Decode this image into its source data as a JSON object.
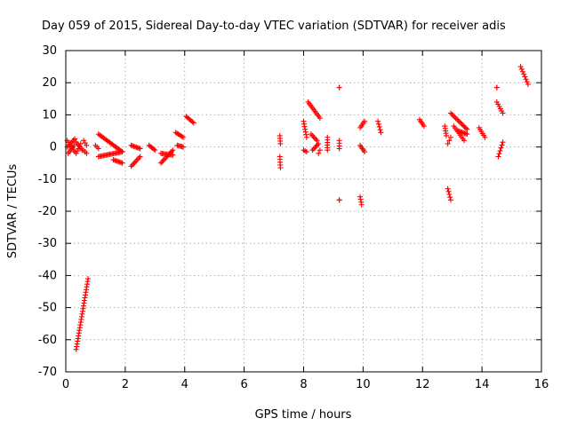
{
  "chart_data": {
    "type": "scatter",
    "title": "Day 059 of 2015, Sidereal Day-to-day VTEC variation (SDTVAR) for receiver adis",
    "xlabel": "GPS time / hours",
    "ylabel": "SDTVAR / TECUs",
    "xlim": [
      0,
      16
    ],
    "ylim": [
      -70,
      30
    ],
    "xticks": [
      0,
      2,
      4,
      6,
      8,
      10,
      12,
      14,
      16
    ],
    "yticks": [
      -70,
      -60,
      -50,
      -40,
      -30,
      -20,
      -10,
      0,
      10,
      20,
      30
    ],
    "grid": true,
    "marker": "plus",
    "color": "#ff0000",
    "series": [
      {
        "name": "sdtvar",
        "segments": [
          [
            0.05,
            2.0,
            0.3,
            -1.5
          ],
          [
            0.05,
            0.0,
            0.3,
            2.5
          ],
          [
            0.08,
            -2.0,
            0.28,
            0.5
          ],
          [
            0.35,
            1.5,
            0.55,
            -1.0
          ],
          [
            0.35,
            -2.0,
            0.5,
            1.0
          ],
          [
            0.6,
            2.0,
            0.7,
            0.5
          ],
          [
            0.6,
            -1.0,
            0.7,
            -2.0
          ],
          [
            0.35,
            -63.0,
            0.75,
            -41.0
          ],
          [
            1.0,
            0.5,
            1.1,
            -0.5
          ],
          [
            1.1,
            4.0,
            1.9,
            -1.5
          ],
          [
            1.1,
            -3.0,
            1.9,
            -1.5
          ],
          [
            1.6,
            -4.0,
            1.9,
            -5.0
          ],
          [
            2.2,
            0.5,
            2.5,
            -0.5
          ],
          [
            2.2,
            -6.0,
            2.5,
            -3.0
          ],
          [
            2.8,
            0.5,
            3.0,
            -1.0
          ],
          [
            3.2,
            -5.0,
            3.6,
            -1.0
          ],
          [
            3.2,
            -2.0,
            3.6,
            -2.5
          ],
          [
            3.7,
            4.5,
            3.95,
            3.0
          ],
          [
            3.75,
            0.5,
            3.95,
            0.0
          ],
          [
            4.05,
            9.5,
            4.3,
            7.5
          ],
          [
            7.2,
            3.5,
            7.22,
            1.0
          ],
          [
            7.2,
            -3.0,
            7.22,
            -6.5
          ],
          [
            8.0,
            8.0,
            8.1,
            3.0
          ],
          [
            8.0,
            -1.0,
            8.1,
            -1.5
          ],
          [
            8.15,
            14.0,
            8.55,
            9.0
          ],
          [
            8.25,
            4.0,
            8.45,
            2.0
          ],
          [
            8.3,
            -1.0,
            8.5,
            1.0
          ],
          [
            8.5,
            -2.0,
            8.55,
            -1.0
          ],
          [
            8.8,
            3.0,
            8.8,
            -1.0
          ],
          [
            9.2,
            18.5,
            9.2,
            18.5
          ],
          [
            9.2,
            2.0,
            9.2,
            -0.5
          ],
          [
            9.2,
            -16.5,
            9.2,
            -16.5
          ],
          [
            9.9,
            6.0,
            10.05,
            8.0
          ],
          [
            9.9,
            0.5,
            10.05,
            -1.5
          ],
          [
            9.9,
            -15.5,
            9.95,
            -18.0
          ],
          [
            10.5,
            8.0,
            10.6,
            4.5
          ],
          [
            11.9,
            8.5,
            12.05,
            6.5
          ],
          [
            12.75,
            6.5,
            12.8,
            3.5
          ],
          [
            12.85,
            1.0,
            12.95,
            3.0
          ],
          [
            12.85,
            -13.0,
            12.95,
            -16.5
          ],
          [
            12.95,
            10.5,
            13.5,
            5.5
          ],
          [
            13.05,
            6.5,
            13.4,
            2.0
          ],
          [
            13.2,
            5.0,
            13.5,
            4.0
          ],
          [
            13.9,
            6.0,
            14.1,
            3.0
          ],
          [
            14.5,
            18.5,
            14.5,
            18.5
          ],
          [
            14.5,
            14.0,
            14.7,
            10.5
          ],
          [
            14.55,
            -3.0,
            14.7,
            1.5
          ],
          [
            15.3,
            25.0,
            15.55,
            19.5
          ]
        ]
      }
    ]
  }
}
